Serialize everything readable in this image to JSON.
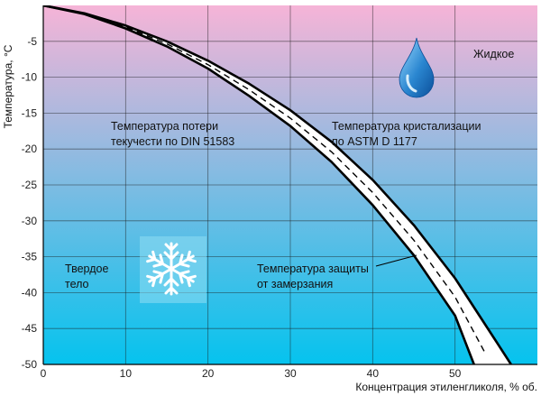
{
  "chart_data": {
    "type": "line",
    "xlabel": "Концентрация этиленгликоля, % об.",
    "ylabel": "Температура, °С",
    "xlim": [
      0,
      60
    ],
    "ylim": [
      -50,
      0
    ],
    "x_ticks": [
      "0",
      "10",
      "20",
      "30",
      "40",
      "50"
    ],
    "y_ticks": [
      "-5",
      "-10",
      "-15",
      "-20",
      "-25",
      "-30",
      "-35",
      "-40",
      "-45",
      "-50"
    ],
    "grid": true,
    "background_gradient": [
      "#f6b4d7",
      "#05c3ee"
    ],
    "series": [
      {
        "points": [
          [
            0,
            0
          ],
          [
            5,
            -1.2
          ],
          [
            10,
            -3.2
          ],
          [
            15,
            -5.7
          ],
          [
            20,
            -8.8
          ],
          [
            25,
            -12.6
          ],
          [
            30,
            -16.8
          ],
          [
            35,
            -21.8
          ],
          [
            40,
            -27.8
          ],
          [
            45,
            -34.8
          ],
          [
            50,
            -43.2
          ],
          [
            52.3,
            -50
          ]
        ]
      },
      {
        "points": [
          [
            0,
            0
          ],
          [
            5,
            -1.1
          ],
          [
            10,
            -2.8
          ],
          [
            15,
            -5.0
          ],
          [
            20,
            -7.7
          ],
          [
            25,
            -10.9
          ],
          [
            30,
            -14.6
          ],
          [
            35,
            -19.0
          ],
          [
            40,
            -24.3
          ],
          [
            45,
            -30.6
          ],
          [
            50,
            -38.0
          ],
          [
            55,
            -46.8
          ],
          [
            56.8,
            -50
          ]
        ]
      }
    ],
    "annotations": {
      "liquid": "Жидкое",
      "pour_point": [
        "Температура потери",
        "текучести по DIN 51583"
      ],
      "crystallization": [
        "Температура кристализации",
        "по ASTM D 1177"
      ],
      "solid": [
        "Твердое",
        "тело"
      ],
      "freeze_protection": [
        "Температура защиты",
        "от замерзания"
      ]
    },
    "icons": [
      "water-drop-icon",
      "snowflake-icon"
    ]
  }
}
